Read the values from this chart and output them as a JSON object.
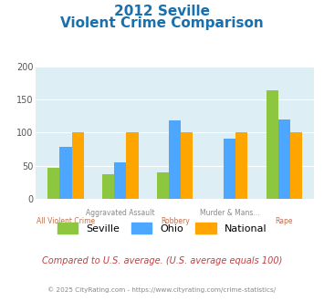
{
  "title_line1": "2012 Seville",
  "title_line2": "Violent Crime Comparison",
  "line1_labels": [
    "",
    "Aggravated Assault",
    "",
    "Murder & Mans...",
    ""
  ],
  "line2_labels": [
    "All Violent Crime",
    "",
    "Robbery",
    "",
    "Rape"
  ],
  "seville": [
    46,
    37,
    39,
    0,
    163
  ],
  "ohio": [
    78,
    55,
    118,
    91,
    119
  ],
  "national": [
    100,
    100,
    100,
    100,
    100
  ],
  "seville_color": "#8dc63f",
  "ohio_color": "#4da6ff",
  "national_color": "#ffa500",
  "ylim": [
    0,
    200
  ],
  "yticks": [
    0,
    50,
    100,
    150,
    200
  ],
  "bg_color": "#ddeef5",
  "fig_bg": "#ffffff",
  "footer_text": "© 2025 CityRating.com - https://www.cityrating.com/crime-statistics/",
  "compare_text": "Compared to U.S. average. (U.S. average equals 100)",
  "title_color": "#1a6fad",
  "footer_color": "#888888",
  "compare_color": "#c04040",
  "xlabel_color1": "#888888",
  "xlabel_color2": "#c07050",
  "bar_width": 0.22
}
